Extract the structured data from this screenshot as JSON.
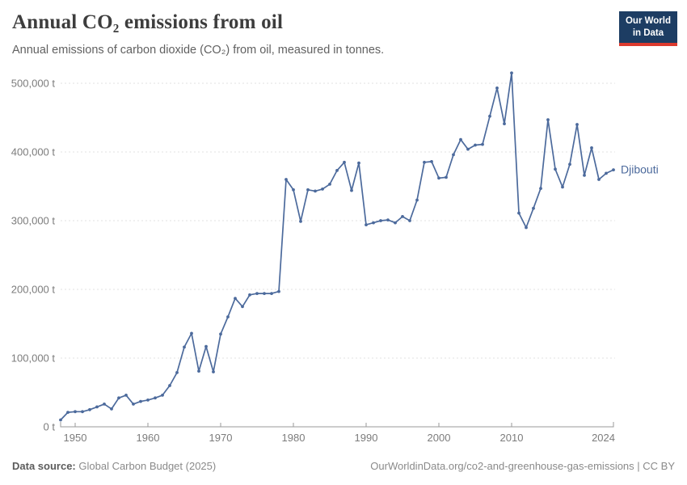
{
  "header": {
    "title": "Annual CO₂ emissions from oil",
    "subtitle": "Annual emissions of carbon dioxide (CO₂) from oil, measured in tonnes.",
    "logo": {
      "line1": "Our World",
      "line2": "in Data",
      "bg_color": "#1d3d63",
      "accent_color": "#dc3a2e"
    }
  },
  "chart_data": {
    "type": "line",
    "title": "Annual CO₂ emissions from oil",
    "unit": "t",
    "xlim": [
      1948,
      2024
    ],
    "ylim": [
      0,
      500000
    ],
    "grid": "horizontal-dashed",
    "legend_position": "end-of-line-label",
    "x_ticks": [
      1950,
      1960,
      1970,
      1980,
      1990,
      2000,
      2010,
      2024
    ],
    "y_ticks": [
      {
        "value": 0,
        "label": "0 t"
      },
      {
        "value": 100000,
        "label": "100,000 t"
      },
      {
        "value": 200000,
        "label": "200,000 t"
      },
      {
        "value": 300000,
        "label": "300,000 t"
      },
      {
        "value": 400000,
        "label": "400,000 t"
      },
      {
        "value": 500000,
        "label": "500,000 t"
      }
    ],
    "series": [
      {
        "name": "Djibouti",
        "color": "#4c6a9c",
        "x": [
          1948,
          1949,
          1950,
          1951,
          1952,
          1953,
          1954,
          1955,
          1956,
          1957,
          1958,
          1959,
          1960,
          1961,
          1962,
          1963,
          1964,
          1965,
          1966,
          1967,
          1968,
          1969,
          1970,
          1971,
          1972,
          1973,
          1974,
          1975,
          1976,
          1977,
          1978,
          1979,
          1980,
          1981,
          1982,
          1983,
          1984,
          1985,
          1986,
          1987,
          1988,
          1989,
          1990,
          1991,
          1992,
          1993,
          1994,
          1995,
          1996,
          1997,
          1998,
          1999,
          2000,
          2001,
          2002,
          2003,
          2004,
          2005,
          2006,
          2007,
          2008,
          2009,
          2010,
          2011,
          2012,
          2013,
          2014,
          2015,
          2016,
          2017,
          2018,
          2019,
          2020,
          2021,
          2022,
          2023,
          2024
        ],
        "values": [
          10000,
          21000,
          22000,
          22000,
          25000,
          29000,
          33000,
          26000,
          42000,
          46000,
          33000,
          37000,
          39000,
          42000,
          46000,
          60000,
          79000,
          116000,
          136000,
          81000,
          117000,
          80000,
          135000,
          160000,
          187000,
          175000,
          192000,
          194000,
          194000,
          194000,
          197000,
          360000,
          345000,
          299000,
          345000,
          343000,
          346000,
          353000,
          373000,
          385000,
          344000,
          384000,
          294000,
          297000,
          300000,
          301000,
          297000,
          306000,
          300000,
          330000,
          385000,
          386000,
          362000,
          363000,
          396000,
          418000,
          404000,
          410000,
          411000,
          452000,
          493000,
          441000,
          515000,
          311000,
          290000,
          318000,
          347000,
          447000,
          375000,
          349000,
          382000,
          440000,
          366000,
          406000,
          360000,
          369000,
          374000
        ]
      }
    ]
  },
  "footer": {
    "source_label": "Data source:",
    "source_value": "Global Carbon Budget (2025)",
    "right_text": "OurWorldinData.org/co2-and-greenhouse-gas-emissions | CC BY"
  }
}
